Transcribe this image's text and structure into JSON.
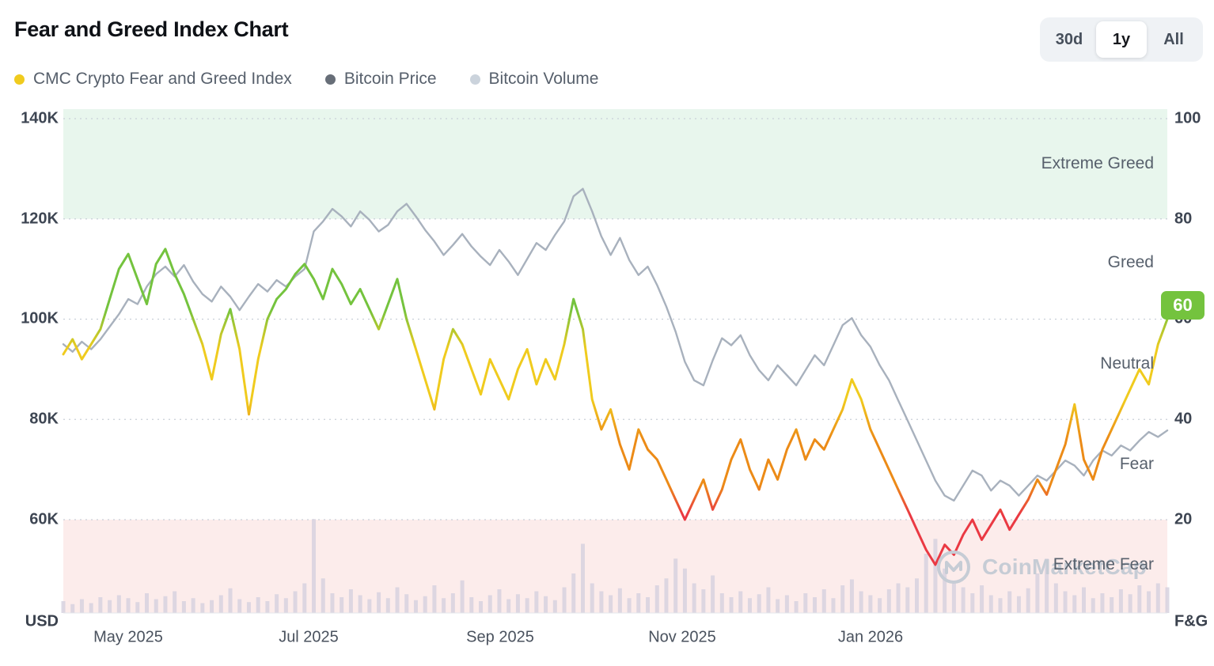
{
  "header": {
    "title": "Fear and Greed Index Chart",
    "range_buttons": [
      {
        "label": "30d",
        "selected": false
      },
      {
        "label": "1y",
        "selected": true
      },
      {
        "label": "All",
        "selected": false
      }
    ]
  },
  "legend": [
    {
      "label": "CMC Crypto Fear and Greed Index",
      "color": "#F0CB1E"
    },
    {
      "label": "Bitcoin Price",
      "color": "#676E78"
    },
    {
      "label": "Bitcoin Volume",
      "color": "#CBD3DC"
    }
  ],
  "axes": {
    "left": [
      "140K",
      "120K",
      "100K",
      "80K",
      "60K"
    ],
    "left_unit": "USD",
    "right": [
      "100",
      "80",
      "60",
      "40",
      "20"
    ],
    "right_unit": "F&G",
    "x": [
      "May 2025",
      "Jul 2025",
      "Sep 2025",
      "Nov 2025",
      "Jan 2026"
    ]
  },
  "zones": {
    "labels": [
      "Extreme Greed",
      "Greed",
      "Neutral",
      "Fear",
      "Extreme Fear"
    ],
    "extreme_greed_bg": "#E8F6ED",
    "extreme_fear_bg": "#FCECEB",
    "colors": {
      "greed_green": "#74C33E",
      "neutral_yellow": "#F0CB1E",
      "fear_orange": "#EC8B17",
      "extreme_fear_red": "#EA3943"
    }
  },
  "badge": {
    "value": "60",
    "color": "#74C33E"
  },
  "watermark": "CoinMarketCap",
  "chart_data": {
    "type": "line",
    "title": "Fear and Greed Index Chart",
    "x_range": [
      "Apr 2025",
      "Apr 2026"
    ],
    "x_tick_labels": [
      "May 2025",
      "Jul 2025",
      "Sep 2025",
      "Nov 2025",
      "Jan 2026"
    ],
    "left_axis": {
      "label": "USD",
      "ticks_k": [
        140,
        120,
        100,
        80,
        60
      ],
      "unit": "K USD"
    },
    "right_axis": {
      "label": "F&G",
      "ticks": [
        100,
        80,
        60,
        40,
        20
      ],
      "range": [
        0,
        100
      ]
    },
    "bands": [
      {
        "name": "Extreme Greed",
        "fg_from": 80,
        "fg_to": 100
      },
      {
        "name": "Extreme Fear",
        "fg_from": 0,
        "fg_to": 20
      }
    ],
    "grid": "dotted-horizontal",
    "legend_position": "top-left",
    "series": [
      {
        "name": "CMC Crypto Fear and Greed Index",
        "axis": "fg",
        "current_value": 60,
        "values": [
          53,
          56,
          52,
          55,
          58,
          64,
          70,
          73,
          68,
          63,
          71,
          74,
          69,
          65,
          60,
          55,
          48,
          57,
          62,
          54,
          41,
          52,
          60,
          64,
          66,
          69,
          71,
          68,
          64,
          70,
          67,
          63,
          66,
          62,
          58,
          63,
          68,
          60,
          54,
          48,
          42,
          52,
          58,
          55,
          50,
          45,
          52,
          48,
          44,
          50,
          54,
          47,
          52,
          48,
          55,
          64,
          58,
          44,
          38,
          42,
          35,
          30,
          38,
          34,
          32,
          28,
          24,
          20,
          24,
          28,
          22,
          26,
          32,
          36,
          30,
          26,
          32,
          28,
          34,
          38,
          32,
          36,
          34,
          38,
          42,
          48,
          44,
          38,
          34,
          30,
          26,
          22,
          18,
          14,
          11,
          15,
          13,
          17,
          20,
          16,
          19,
          22,
          18,
          21,
          24,
          28,
          25,
          30,
          35,
          43,
          32,
          28,
          34,
          38,
          42,
          46,
          50,
          47,
          55,
          60
        ]
      },
      {
        "name": "Bitcoin Price",
        "axis": "usd_k",
        "color": "#A8B1BD",
        "values": [
          95,
          93.5,
          95.5,
          94,
          96,
          98.5,
          101,
          104,
          103,
          106.5,
          109,
          110.5,
          108.5,
          110.8,
          107.5,
          105,
          103.5,
          106.5,
          104.5,
          101.8,
          104.5,
          107,
          105.5,
          107.8,
          106.5,
          108.5,
          110,
          117.5,
          119.5,
          122,
          120.5,
          118.5,
          121.5,
          119.8,
          117.5,
          118.8,
          121.5,
          123,
          120.5,
          117.8,
          115.5,
          112.8,
          114.8,
          117,
          114.5,
          112.5,
          110.8,
          113.8,
          111.5,
          108.8,
          112,
          115.2,
          113.8,
          116.8,
          119.5,
          124.5,
          126,
          121.5,
          116.5,
          112.8,
          116.2,
          111.8,
          108.8,
          110.5,
          106.8,
          102.5,
          97.5,
          91.5,
          87.8,
          86.8,
          91.8,
          96.2,
          94.8,
          96.8,
          92.8,
          89.8,
          87.8,
          90.8,
          88.8,
          86.8,
          89.8,
          92.8,
          90.8,
          94.8,
          98.8,
          100.2,
          96.8,
          94.5,
          90.8,
          87.8,
          83.8,
          79.8,
          75.8,
          71.8,
          67.8,
          64.8,
          63.8,
          66.8,
          69.8,
          68.8,
          65.8,
          67.8,
          66.8,
          64.8,
          66.8,
          68.8,
          67.8,
          69.8,
          71.8,
          70.8,
          68.8,
          71.8,
          73.8,
          72.8,
          74.8,
          73.8,
          75.8,
          77.5,
          76.5,
          77.8
        ]
      },
      {
        "name": "Bitcoin Volume",
        "axis": "relative",
        "render": "bar",
        "color": "#D7D2DF",
        "values": [
          12,
          9,
          14,
          10,
          16,
          13,
          18,
          15,
          11,
          20,
          14,
          17,
          22,
          12,
          15,
          10,
          13,
          18,
          25,
          14,
          11,
          16,
          12,
          19,
          15,
          22,
          30,
          95,
          35,
          20,
          16,
          24,
          18,
          14,
          21,
          15,
          26,
          19,
          13,
          17,
          28,
          15,
          20,
          33,
          16,
          12,
          18,
          24,
          14,
          19,
          15,
          22,
          17,
          13,
          26,
          40,
          70,
          30,
          22,
          18,
          25,
          15,
          20,
          16,
          28,
          35,
          55,
          45,
          30,
          24,
          38,
          20,
          16,
          22,
          15,
          19,
          26,
          14,
          18,
          12,
          20,
          16,
          24,
          15,
          28,
          34,
          22,
          18,
          15,
          24,
          30,
          26,
          35,
          60,
          75,
          45,
          32,
          26,
          20,
          28,
          18,
          15,
          22,
          17,
          25,
          40,
          55,
          30,
          22,
          18,
          26,
          15,
          20,
          16,
          24,
          19,
          28,
          22,
          30,
          26
        ]
      }
    ]
  }
}
